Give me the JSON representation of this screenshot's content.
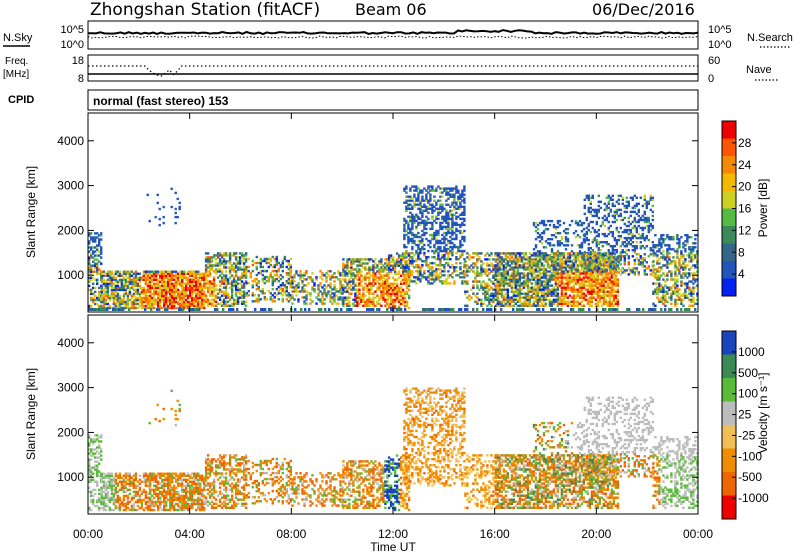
{
  "header": {
    "station": "Zhongshan Station (fitACF)",
    "beam": "Beam 06",
    "date": "06/Dec/2016"
  },
  "top_strip": {
    "left_label": "N.Sky",
    "left_ticks": [
      "10^5",
      "10^0"
    ],
    "right_ticks": [
      "10^5",
      "10^0"
    ],
    "right_label": "N.Search"
  },
  "freq_strip": {
    "label_line1": "Freq.",
    "label_line2": "[MHz]",
    "left_ticks": [
      "18",
      "8"
    ],
    "right_ticks": [
      "60",
      "0"
    ],
    "right_label": "Nave"
  },
  "cpid": {
    "label": "CPID",
    "text": "normal (fast stereo) 153"
  },
  "chart_data": [
    {
      "type": "heatmap",
      "ylabel": "Slant Range [km]",
      "yticks": [
        "1000",
        "2000",
        "3000",
        "4000"
      ],
      "ylim": [
        180,
        4620
      ],
      "xlim": [
        0,
        24
      ],
      "colorbar": {
        "label": "Power [dB]",
        "ticks": [
          "4",
          "8",
          "12",
          "16",
          "20",
          "24",
          "28"
        ],
        "colors": [
          "#0022ee",
          "#2255bb",
          "#336688",
          "#3b8a5a",
          "#55bb44",
          "#ccd022",
          "#f4b800",
          "#f58a00",
          "#ff5500",
          "#ee0000"
        ]
      }
    },
    {
      "type": "heatmap",
      "ylabel": "Slant Range [km]",
      "xlabel": "Time UT",
      "yticks": [
        "1000",
        "2000",
        "3000",
        "4000"
      ],
      "xticks": [
        "00:00",
        "04:00",
        "08:00",
        "12:00",
        "16:00",
        "20:00",
        "00:00"
      ],
      "ylim": [
        180,
        4620
      ],
      "xlim": [
        0,
        24
      ],
      "colorbar": {
        "label": "Velocity [m s⁻¹]",
        "ticks": [
          "1000",
          "500",
          "100",
          "25",
          "-25",
          "-100",
          "-500",
          "-1000"
        ],
        "colors": [
          "#1a44bb",
          "#3a8a55",
          "#5aba3a",
          "#bcbcbc",
          "#f2bf55",
          "#f08c00",
          "#ee6600",
          "#ee0000"
        ]
      }
    }
  ]
}
